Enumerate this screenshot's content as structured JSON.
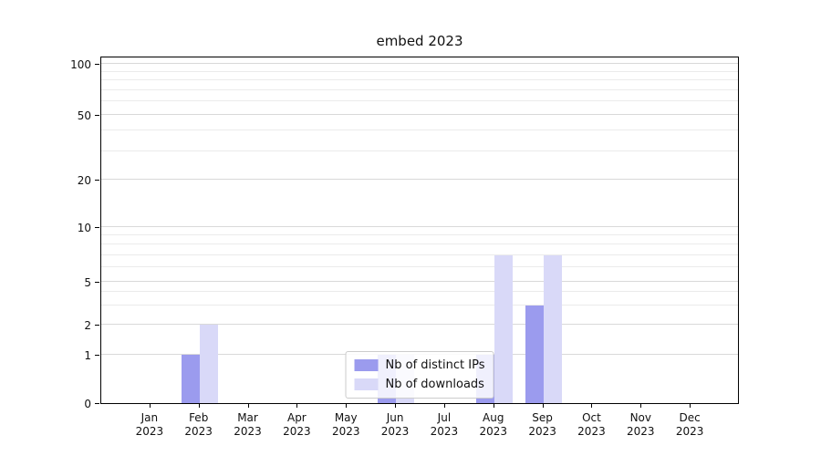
{
  "title": "embed 2023",
  "chart_data": {
    "type": "bar",
    "scale": "symlog",
    "grid": true,
    "legend_position": "lower center",
    "categories": [
      {
        "month": "Jan",
        "year": "2023"
      },
      {
        "month": "Feb",
        "year": "2023"
      },
      {
        "month": "Mar",
        "year": "2023"
      },
      {
        "month": "Apr",
        "year": "2023"
      },
      {
        "month": "May",
        "year": "2023"
      },
      {
        "month": "Jun",
        "year": "2023"
      },
      {
        "month": "Jul",
        "year": "2023"
      },
      {
        "month": "Aug",
        "year": "2023"
      },
      {
        "month": "Sep",
        "year": "2023"
      },
      {
        "month": "Oct",
        "year": "2023"
      },
      {
        "month": "Nov",
        "year": "2023"
      },
      {
        "month": "Dec",
        "year": "2023"
      }
    ],
    "series": [
      {
        "name": "Nb of distinct IPs",
        "color": "#9b9bee",
        "values": [
          0,
          1,
          0,
          0,
          0,
          1,
          0,
          1,
          3,
          0,
          0,
          0
        ]
      },
      {
        "name": "Nb of downloads",
        "color": "#d9d9f8",
        "values": [
          0,
          2,
          0,
          0,
          0,
          1,
          0,
          7,
          7,
          0,
          0,
          0
        ]
      }
    ],
    "yticks": [
      0,
      1,
      2,
      5,
      10,
      20,
      50,
      100
    ],
    "ylim": [
      0,
      110
    ]
  }
}
